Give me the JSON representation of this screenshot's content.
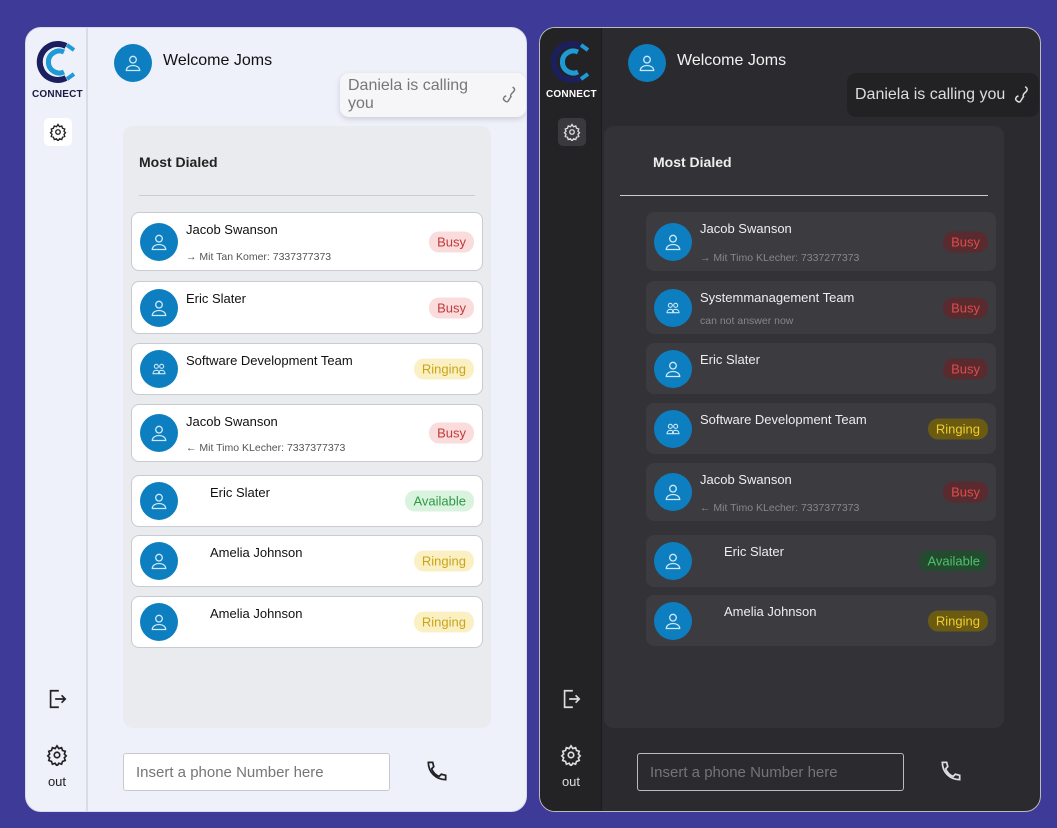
{
  "brand": "CONNECT",
  "out_label": "out",
  "welcome": "Welcome Joms",
  "toast": "Daniela is calling you",
  "most_dialed": "Most Dialed",
  "phone_placeholder": "Insert a phone Number here",
  "colors": {
    "accent": "#0d7fc0",
    "busy": "#c23a3a",
    "ringing": "#c9a516",
    "available": "#2c9a45"
  },
  "light": {
    "contacts": [
      {
        "name": "Jacob Swanson",
        "type": "person",
        "direction": "out",
        "sub": "Mit Tan Komer: 7337377373",
        "status": "Busy"
      },
      {
        "name": "Eric Slater",
        "type": "person",
        "sub": "",
        "status": "Busy"
      },
      {
        "name": "Software Development Team",
        "type": "group",
        "sub": "",
        "status": "Ringing"
      },
      {
        "name": "Jacob Swanson",
        "type": "person",
        "direction": "in",
        "sub": "Mit Timo KLecher: 7337377373",
        "status": "Busy"
      },
      {
        "name": "Eric Slater",
        "type": "person",
        "sub": "",
        "status": "Available",
        "indent": true
      },
      {
        "name": "Amelia Johnson",
        "type": "person",
        "sub": "",
        "status": "Ringing",
        "indent": true
      },
      {
        "name": "Amelia Johnson",
        "type": "person",
        "sub": "",
        "status": "Ringing",
        "indent": true
      }
    ]
  },
  "dark": {
    "contacts": [
      {
        "name": "Jacob Swanson",
        "type": "person",
        "direction": "out",
        "sub": "Mit Timo KLecher: 7337277373",
        "status": "Busy"
      },
      {
        "name": "Systemmanagement Team",
        "type": "group",
        "sub": "can not answer now",
        "status": "Busy"
      },
      {
        "name": "Eric Slater",
        "type": "person",
        "sub": "",
        "status": "Busy"
      },
      {
        "name": "Software Development Team",
        "type": "group",
        "sub": "",
        "status": "Ringing"
      },
      {
        "name": "Jacob Swanson",
        "type": "person",
        "direction": "in",
        "sub": "Mit Timo KLecher: 7337377373",
        "status": "Busy"
      },
      {
        "name": "Eric Slater",
        "type": "person",
        "sub": "",
        "status": "Available",
        "indent": true
      },
      {
        "name": "Amelia Johnson",
        "type": "person",
        "sub": "",
        "status": "Ringing",
        "indent": true
      }
    ]
  }
}
